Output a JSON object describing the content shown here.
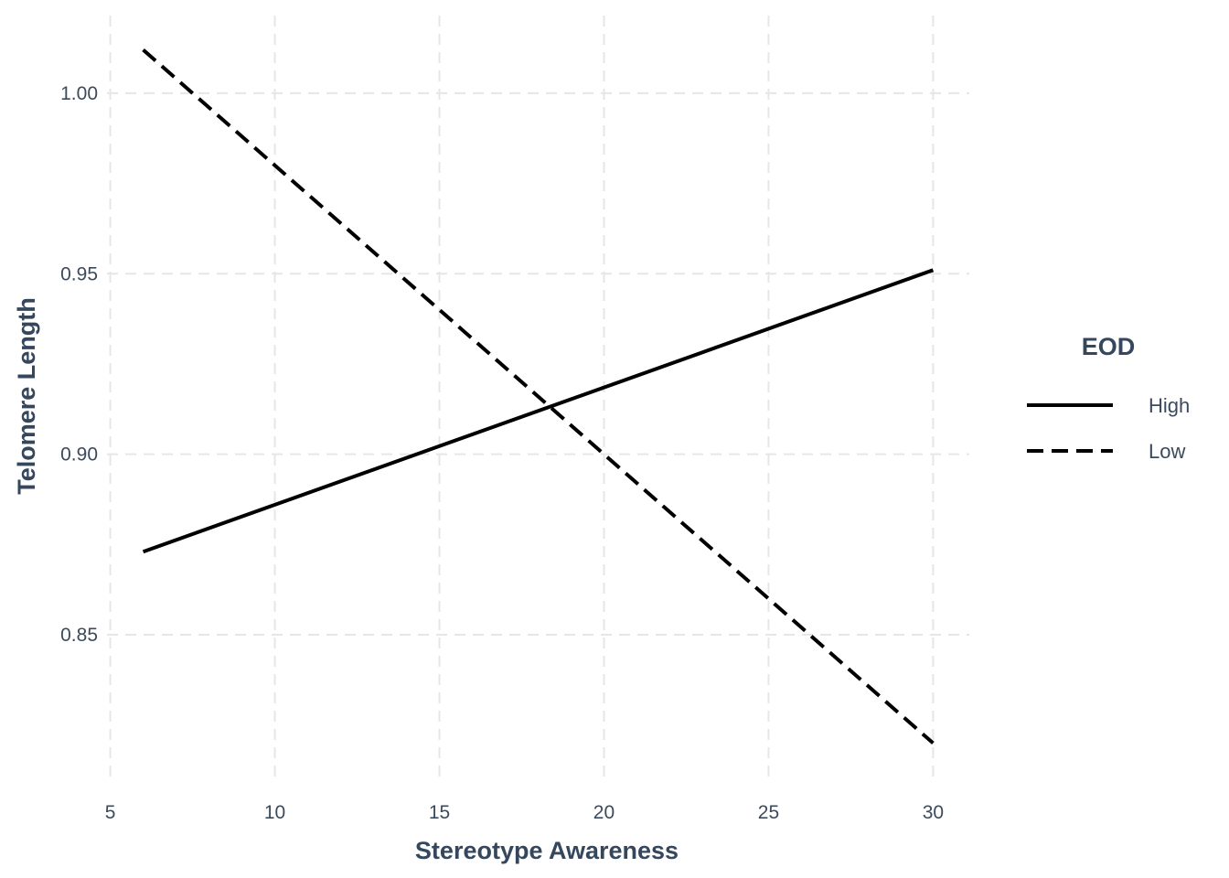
{
  "chart_data": {
    "type": "line",
    "title": "",
    "xlabel": "Stereotype Awareness",
    "ylabel": "Telomere Length",
    "xlim": [
      4.9,
      31.1
    ],
    "ylim": [
      0.8105,
      1.0215
    ],
    "x_ticks": [
      5,
      10,
      15,
      20,
      25,
      30
    ],
    "x_tick_labels": [
      "5",
      "10",
      "15",
      "20",
      "25",
      "30"
    ],
    "y_ticks": [
      0.85,
      0.9,
      0.95,
      1.0
    ],
    "y_tick_labels": [
      "0.85",
      "0.90",
      "0.95",
      "1.00"
    ],
    "grid": true,
    "legend": {
      "title": "EOD",
      "position": "right"
    },
    "series": [
      {
        "name": "High",
        "linestyle": "solid",
        "color": "#000000",
        "x": [
          6,
          30
        ],
        "y": [
          0.873,
          0.951
        ]
      },
      {
        "name": "Low",
        "linestyle": "dashed",
        "color": "#000000",
        "x": [
          6,
          30
        ],
        "y": [
          1.012,
          0.82
        ]
      }
    ]
  }
}
